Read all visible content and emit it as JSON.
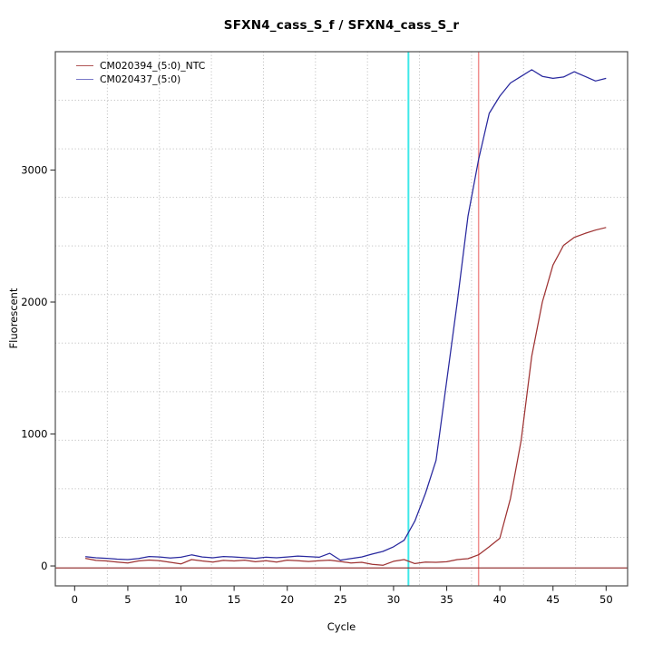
{
  "figure": {
    "title": "SFXN4_cass_S_f / SFXN4_cass_S_r",
    "xlabel": "Cycle",
    "ylabel": "Fluorescent"
  },
  "chart_data": {
    "type": "line",
    "title": "SFXN4_cass_S_f / SFXN4_cass_S_r",
    "xlabel": "Cycle",
    "ylabel": "Fluorescent",
    "xlim": [
      -1.82,
      52.02
    ],
    "ylim": [
      -151,
      3897
    ],
    "x_ticks": [
      0,
      5,
      10,
      15,
      20,
      25,
      30,
      35,
      40,
      45,
      50
    ],
    "y_ticks": [
      0,
      1000,
      2000,
      3000
    ],
    "grid": {
      "nx": 11,
      "ny": 11,
      "color": "#B8B8B8",
      "style": "dotted"
    },
    "legend_position": "top-left",
    "x": [
      1,
      2,
      3,
      4,
      5,
      6,
      7,
      8,
      9,
      10,
      11,
      12,
      13,
      14,
      15,
      16,
      17,
      18,
      19,
      20,
      21,
      22,
      23,
      24,
      25,
      26,
      27,
      28,
      29,
      30,
      31,
      32,
      33,
      34,
      35,
      36,
      37,
      38,
      39,
      40,
      41,
      42,
      43,
      44,
      45,
      46,
      47,
      48,
      49,
      50
    ],
    "series": [
      {
        "name": "CM020394_(5:0)_NTC",
        "color": "#9E3232",
        "legend_color": "#B05555",
        "values": [
          58,
          42,
          38,
          30,
          22,
          38,
          45,
          40,
          28,
          15,
          48,
          38,
          30,
          42,
          38,
          44,
          32,
          40,
          30,
          44,
          40,
          34,
          40,
          44,
          34,
          22,
          28,
          12,
          5,
          35,
          48,
          18,
          30,
          28,
          32,
          48,
          55,
          85,
          145,
          210,
          510,
          950,
          1590,
          2000,
          2280,
          2430,
          2490,
          2520,
          2545,
          2565
        ]
      },
      {
        "name": "CM020437_(5:0)",
        "color": "#28289E",
        "legend_color": "#7878C8",
        "values": [
          70,
          62,
          58,
          52,
          48,
          56,
          72,
          68,
          60,
          66,
          84,
          68,
          62,
          72,
          68,
          63,
          58,
          66,
          62,
          68,
          75,
          70,
          66,
          96,
          44,
          56,
          68,
          90,
          110,
          145,
          195,
          340,
          550,
          800,
          1400,
          2000,
          2650,
          3080,
          3430,
          3560,
          3660,
          3710,
          3760,
          3710,
          3695,
          3705,
          3745,
          3710,
          3675,
          3695
        ]
      }
    ],
    "markers": {
      "vlines": [
        {
          "x": 31.4,
          "color": "#3FE8E8",
          "width": 2,
          "name": "ct-line-cyan"
        },
        {
          "x": 38.0,
          "color": "#F09090",
          "width": 1.5,
          "name": "ct-line-salmon"
        }
      ],
      "hlines": [
        {
          "y": -15,
          "color": "#8B2323",
          "width": 1.1,
          "name": "threshold-line"
        }
      ]
    }
  }
}
